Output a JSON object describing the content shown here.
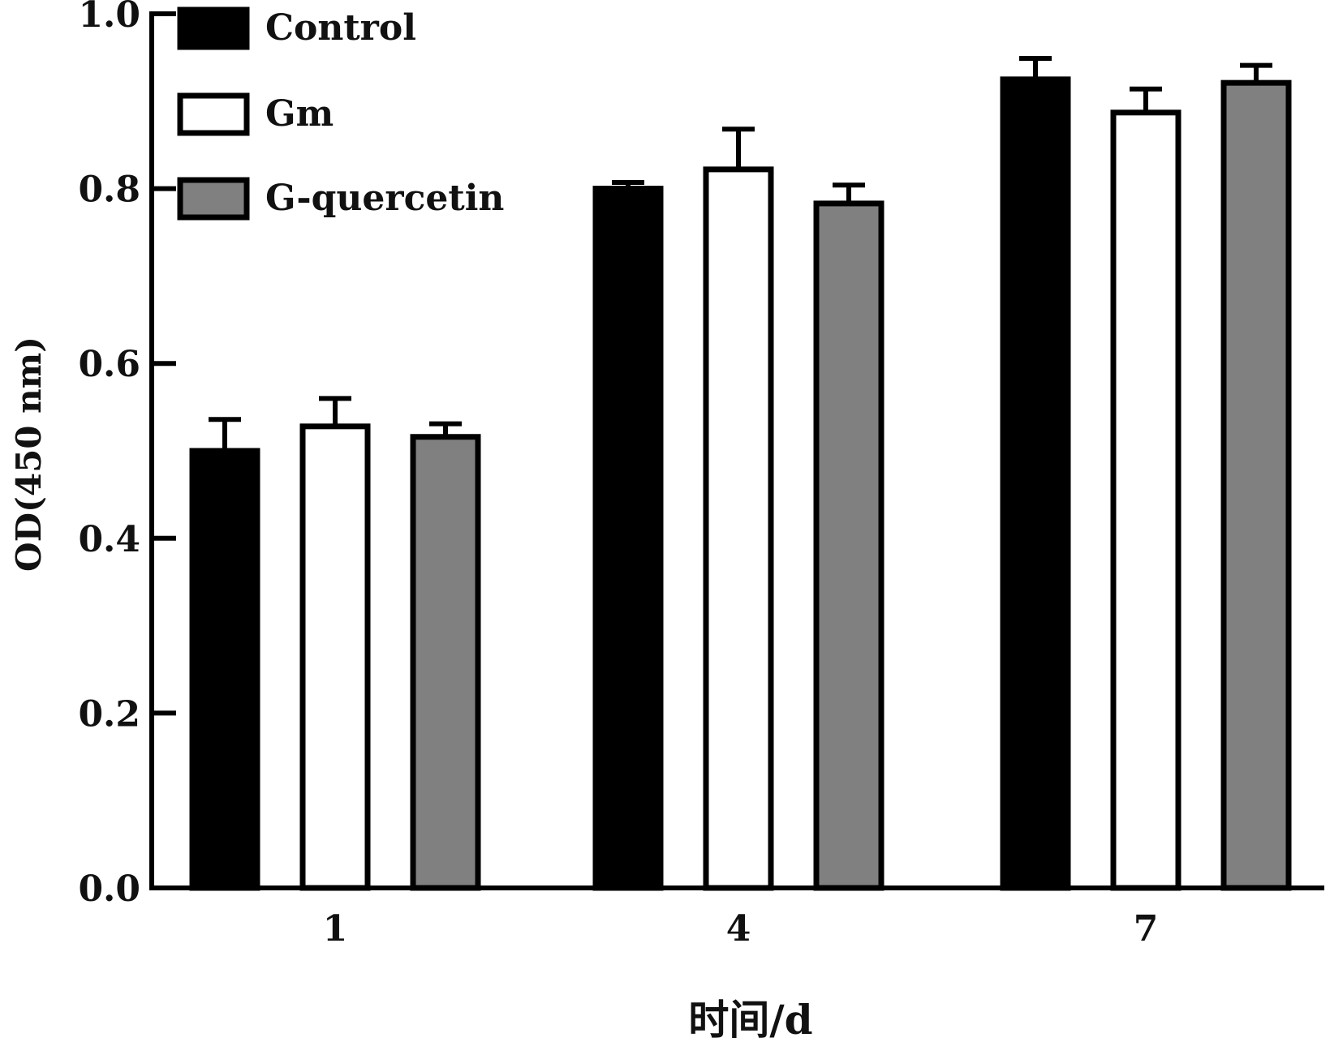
{
  "chart_data": {
    "type": "bar",
    "title": "",
    "xlabel": "时间/d",
    "ylabel": "OD(450 nm)",
    "ylim": [
      0,
      1.0
    ],
    "yticks": [
      "0.0",
      "0.2",
      "0.4",
      "0.6",
      "0.8",
      "1.0"
    ],
    "categories": [
      "1",
      "4",
      "7"
    ],
    "grid": false,
    "legend_position": "top-left",
    "series": [
      {
        "name": "Control",
        "color": "#000000",
        "values": [
          0.5,
          0.8,
          0.925
        ],
        "errors": [
          0.036,
          0.007,
          0.024
        ]
      },
      {
        "name": "Gm",
        "color": "#ffffff",
        "values": [
          0.528,
          0.822,
          0.887
        ],
        "errors": [
          0.032,
          0.046,
          0.027
        ]
      },
      {
        "name": "G-quercetin",
        "color": "#808080",
        "values": [
          0.516,
          0.783,
          0.921
        ],
        "errors": [
          0.015,
          0.021,
          0.02
        ]
      }
    ]
  }
}
